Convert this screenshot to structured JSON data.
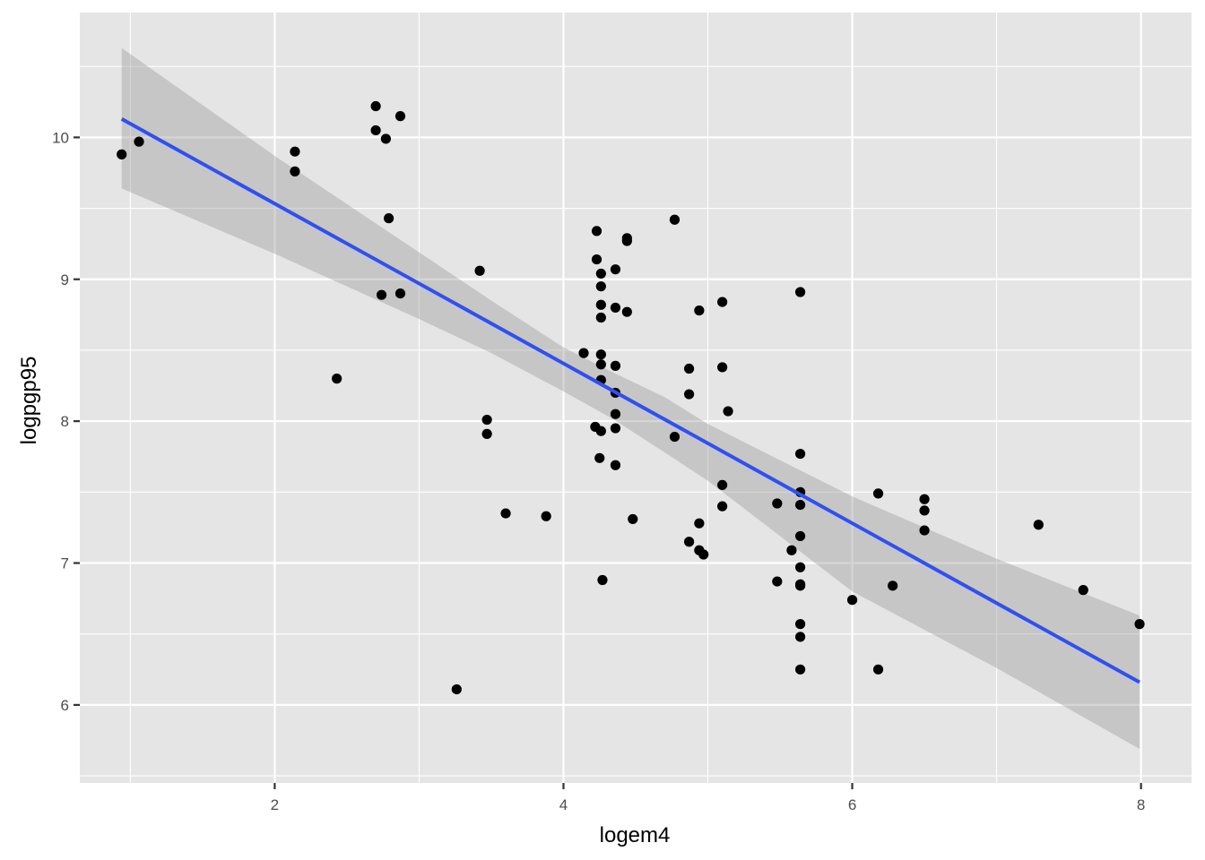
{
  "chart_data": {
    "type": "scatter",
    "xlabel": "logem4",
    "ylabel": "logpgp95",
    "xlim": [
      0.65,
      8.35
    ],
    "ylim": [
      5.45,
      10.88
    ],
    "x_ticks": [
      2,
      4,
      6,
      8
    ],
    "y_ticks": [
      6,
      7,
      8,
      9,
      10
    ],
    "x_tick_labels": [
      "2",
      "4",
      "6",
      "8"
    ],
    "y_tick_labels": [
      "6",
      "7",
      "8",
      "9",
      "10"
    ],
    "grid": true,
    "colors": {
      "panel_background": "#e5e5e5",
      "grid": "#ffffff",
      "points": "#000000",
      "fit_line": "#3050f0",
      "confidence_band": "#999999"
    },
    "points": [
      {
        "x": 0.94,
        "y": 9.88
      },
      {
        "x": 1.06,
        "y": 9.97
      },
      {
        "x": 2.14,
        "y": 9.9
      },
      {
        "x": 2.14,
        "y": 9.76
      },
      {
        "x": 2.43,
        "y": 8.3
      },
      {
        "x": 2.7,
        "y": 10.22
      },
      {
        "x": 2.7,
        "y": 10.05
      },
      {
        "x": 2.77,
        "y": 9.99
      },
      {
        "x": 2.79,
        "y": 9.43
      },
      {
        "x": 2.74,
        "y": 8.89
      },
      {
        "x": 2.87,
        "y": 10.15
      },
      {
        "x": 2.87,
        "y": 8.9
      },
      {
        "x": 3.26,
        "y": 6.11
      },
      {
        "x": 3.42,
        "y": 9.06
      },
      {
        "x": 3.47,
        "y": 8.01
      },
      {
        "x": 3.47,
        "y": 7.91
      },
      {
        "x": 3.6,
        "y": 7.35
      },
      {
        "x": 3.88,
        "y": 7.33
      },
      {
        "x": 4.14,
        "y": 8.48
      },
      {
        "x": 4.22,
        "y": 7.96
      },
      {
        "x": 4.23,
        "y": 9.34
      },
      {
        "x": 4.23,
        "y": 9.14
      },
      {
        "x": 4.25,
        "y": 7.74
      },
      {
        "x": 4.26,
        "y": 9.04
      },
      {
        "x": 4.26,
        "y": 8.95
      },
      {
        "x": 4.26,
        "y": 8.82
      },
      {
        "x": 4.26,
        "y": 8.73
      },
      {
        "x": 4.26,
        "y": 8.47
      },
      {
        "x": 4.26,
        "y": 8.4
      },
      {
        "x": 4.26,
        "y": 8.29
      },
      {
        "x": 4.26,
        "y": 7.93
      },
      {
        "x": 4.27,
        "y": 6.88
      },
      {
        "x": 4.36,
        "y": 9.07
      },
      {
        "x": 4.36,
        "y": 8.8
      },
      {
        "x": 4.36,
        "y": 8.39
      },
      {
        "x": 4.36,
        "y": 8.2
      },
      {
        "x": 4.36,
        "y": 8.05
      },
      {
        "x": 4.36,
        "y": 7.95
      },
      {
        "x": 4.36,
        "y": 7.69
      },
      {
        "x": 4.44,
        "y": 9.29
      },
      {
        "x": 4.44,
        "y": 9.27
      },
      {
        "x": 4.44,
        "y": 8.77
      },
      {
        "x": 4.48,
        "y": 7.31
      },
      {
        "x": 4.77,
        "y": 9.42
      },
      {
        "x": 4.77,
        "y": 7.89
      },
      {
        "x": 4.87,
        "y": 8.37
      },
      {
        "x": 4.87,
        "y": 8.19
      },
      {
        "x": 4.87,
        "y": 7.15
      },
      {
        "x": 4.94,
        "y": 8.78
      },
      {
        "x": 4.94,
        "y": 7.28
      },
      {
        "x": 4.94,
        "y": 7.09
      },
      {
        "x": 4.97,
        "y": 7.06
      },
      {
        "x": 5.1,
        "y": 8.84
      },
      {
        "x": 5.1,
        "y": 8.38
      },
      {
        "x": 5.1,
        "y": 7.55
      },
      {
        "x": 5.1,
        "y": 7.4
      },
      {
        "x": 5.14,
        "y": 8.07
      },
      {
        "x": 5.48,
        "y": 7.42
      },
      {
        "x": 5.48,
        "y": 6.87
      },
      {
        "x": 5.58,
        "y": 7.09
      },
      {
        "x": 5.64,
        "y": 8.91
      },
      {
        "x": 5.64,
        "y": 7.77
      },
      {
        "x": 5.64,
        "y": 7.5
      },
      {
        "x": 5.64,
        "y": 7.41
      },
      {
        "x": 5.64,
        "y": 7.19
      },
      {
        "x": 5.64,
        "y": 6.97
      },
      {
        "x": 5.64,
        "y": 6.85
      },
      {
        "x": 5.64,
        "y": 6.84
      },
      {
        "x": 5.64,
        "y": 6.57
      },
      {
        "x": 5.64,
        "y": 6.48
      },
      {
        "x": 5.64,
        "y": 6.25
      },
      {
        "x": 6.0,
        "y": 6.74
      },
      {
        "x": 6.18,
        "y": 7.49
      },
      {
        "x": 6.18,
        "y": 6.25
      },
      {
        "x": 6.28,
        "y": 6.84
      },
      {
        "x": 6.5,
        "y": 7.45
      },
      {
        "x": 6.5,
        "y": 7.37
      },
      {
        "x": 6.5,
        "y": 7.23
      },
      {
        "x": 7.29,
        "y": 7.27
      },
      {
        "x": 7.6,
        "y": 6.81
      },
      {
        "x": 7.99,
        "y": 6.57
      }
    ],
    "fit": {
      "x": [
        0.94,
        7.99
      ],
      "y": [
        10.13,
        6.16
      ]
    },
    "confidence_band": {
      "x": [
        0.94,
        2.0,
        3.0,
        3.5,
        4.0,
        4.35,
        4.7,
        5.0,
        6.0,
        7.0,
        7.99
      ],
      "lower": [
        9.64,
        9.18,
        8.72,
        8.48,
        8.21,
        8.01,
        7.78,
        7.58,
        6.8,
        6.26,
        5.69
      ],
      "upper": [
        10.63,
        9.87,
        9.19,
        8.85,
        8.52,
        8.34,
        8.17,
        7.98,
        7.47,
        7.03,
        6.63
      ]
    }
  }
}
